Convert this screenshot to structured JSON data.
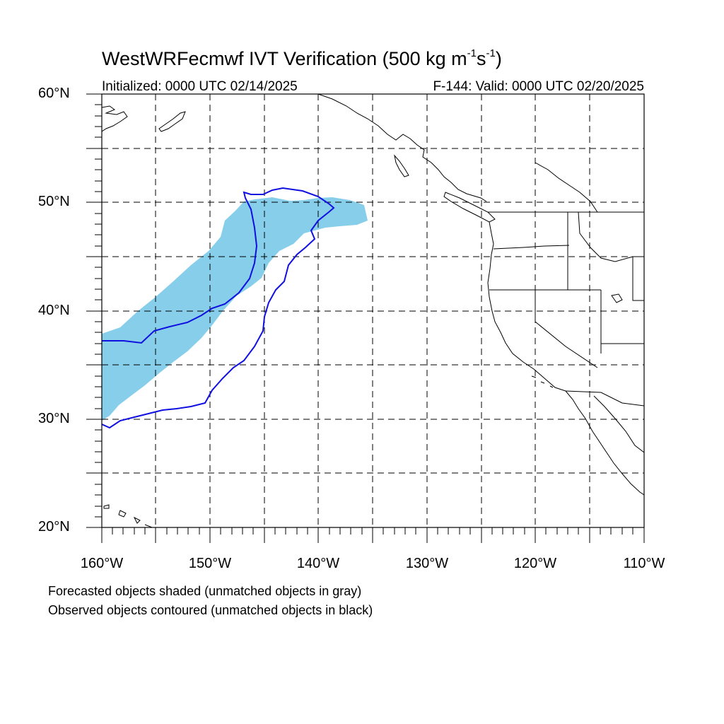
{
  "figure": {
    "title_main": "WestWRFecmwf IVT Verification (500 kg m",
    "title_sup1": "-1",
    "title_mid": "s",
    "title_sup2": "-1",
    "title_end": ")",
    "init_text": "Initialized: 0000 UTC 02/14/2025",
    "valid_text": "F-144: Valid: 0000 UTC 02/20/2025"
  },
  "map_data": {
    "projection": "cylindrical-equidistant",
    "lon_range": [
      -160,
      -110
    ],
    "lat_range": [
      20,
      60
    ],
    "grid_lines": "dashed",
    "lat_labels": [
      "60°N",
      "50°N",
      "40°N",
      "30°N",
      "20°N"
    ],
    "lon_labels": [
      "160°W",
      "150°W",
      "140°W",
      "130°W",
      "120°W",
      "110°W"
    ],
    "forecast_object_color": "#87ceeb",
    "observed_contour_color": "#1010e0",
    "coastline_color": "#000000"
  },
  "legend": {
    "note_forecast": "Forecasted objects shaded (unmatched objects in gray)",
    "note_observed": "Observed objects contoured (unmatched objects in black)"
  }
}
